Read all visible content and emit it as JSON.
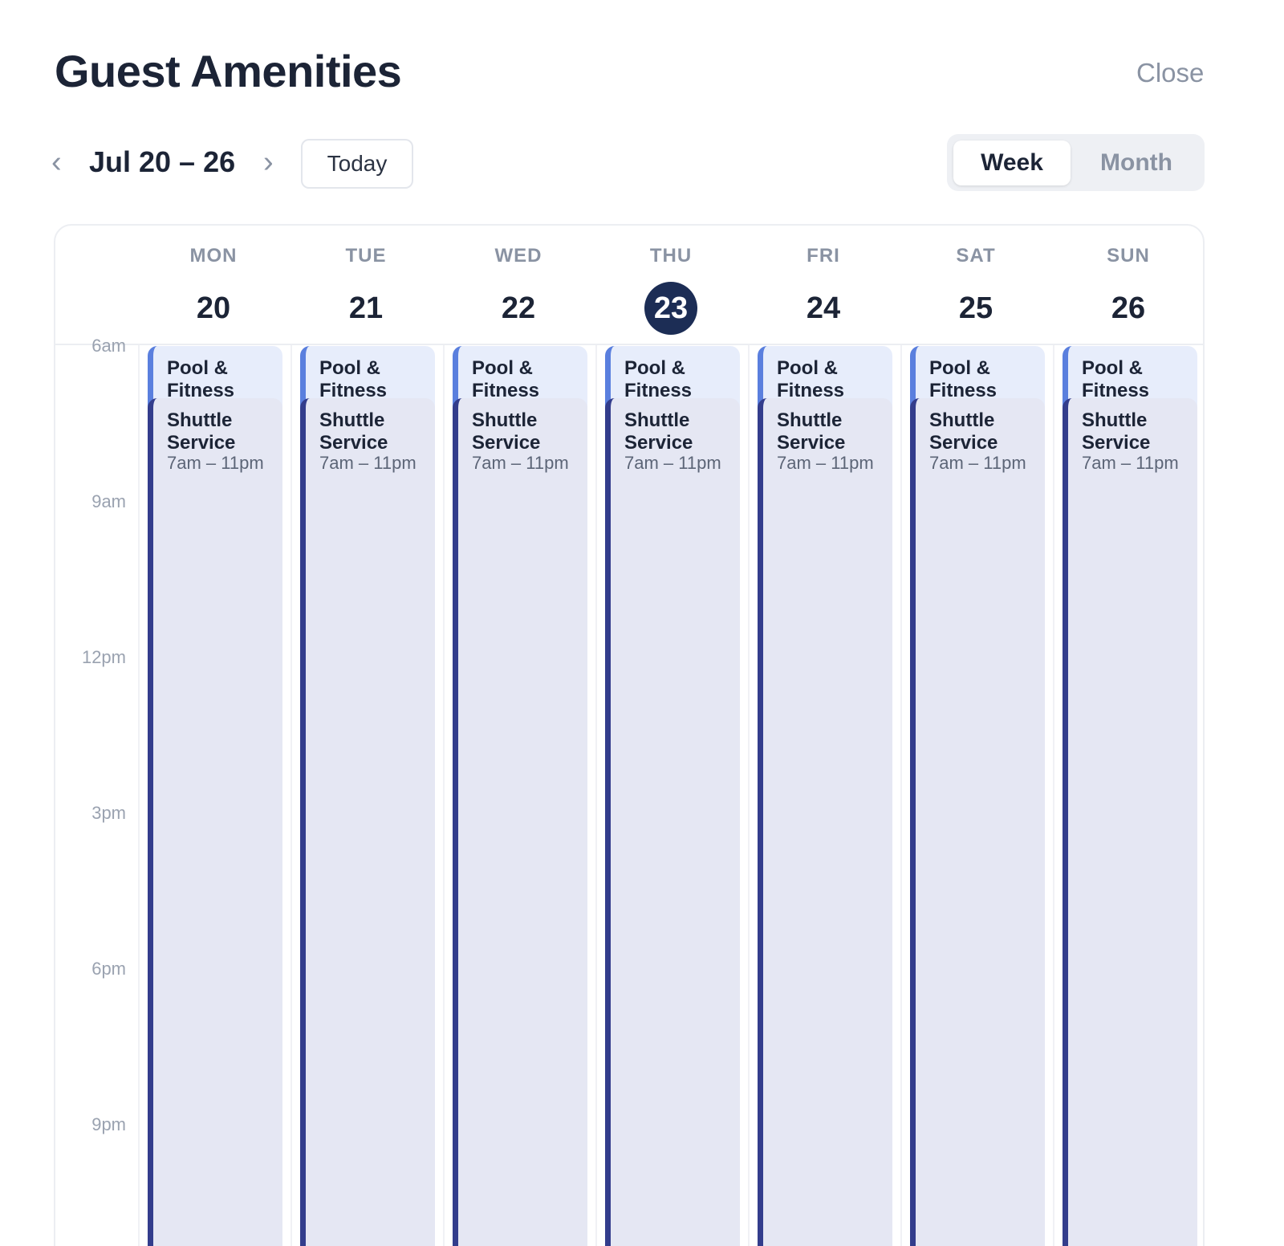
{
  "header": {
    "title": "Guest Amenities",
    "close_label": "Close"
  },
  "toolbar": {
    "prev_label": "‹",
    "range_label": "Jul 20 – 26",
    "next_label": "›",
    "today_label": "Today",
    "view_week": "Week",
    "view_month": "Month",
    "active_view": "Week"
  },
  "days": [
    {
      "dow": "MON",
      "date": "20",
      "is_today": false
    },
    {
      "dow": "TUE",
      "date": "21",
      "is_today": false
    },
    {
      "dow": "WED",
      "date": "22",
      "is_today": false
    },
    {
      "dow": "THU",
      "date": "23",
      "is_today": true
    },
    {
      "dow": "FRI",
      "date": "24",
      "is_today": false
    },
    {
      "dow": "SAT",
      "date": "25",
      "is_today": false
    },
    {
      "dow": "SUN",
      "date": "26",
      "is_today": false
    }
  ],
  "hours": [
    "6am",
    "9am",
    "12pm",
    "3pm",
    "6pm",
    "9pm"
  ],
  "events": [
    {
      "title": "Pool & Fitness",
      "start_hour": 6,
      "end_hour": 23,
      "time_label": "",
      "color": "#5a7fde"
    },
    {
      "title": "Shuttle Service",
      "start_hour": 7,
      "end_hour": 23,
      "time_label": "7am – 11pm",
      "color": "#333d8c"
    }
  ],
  "colors": {
    "today_circle": "#1c2d55",
    "pool_accent": "#5a7fde",
    "shuttle_accent": "#333d8c"
  }
}
